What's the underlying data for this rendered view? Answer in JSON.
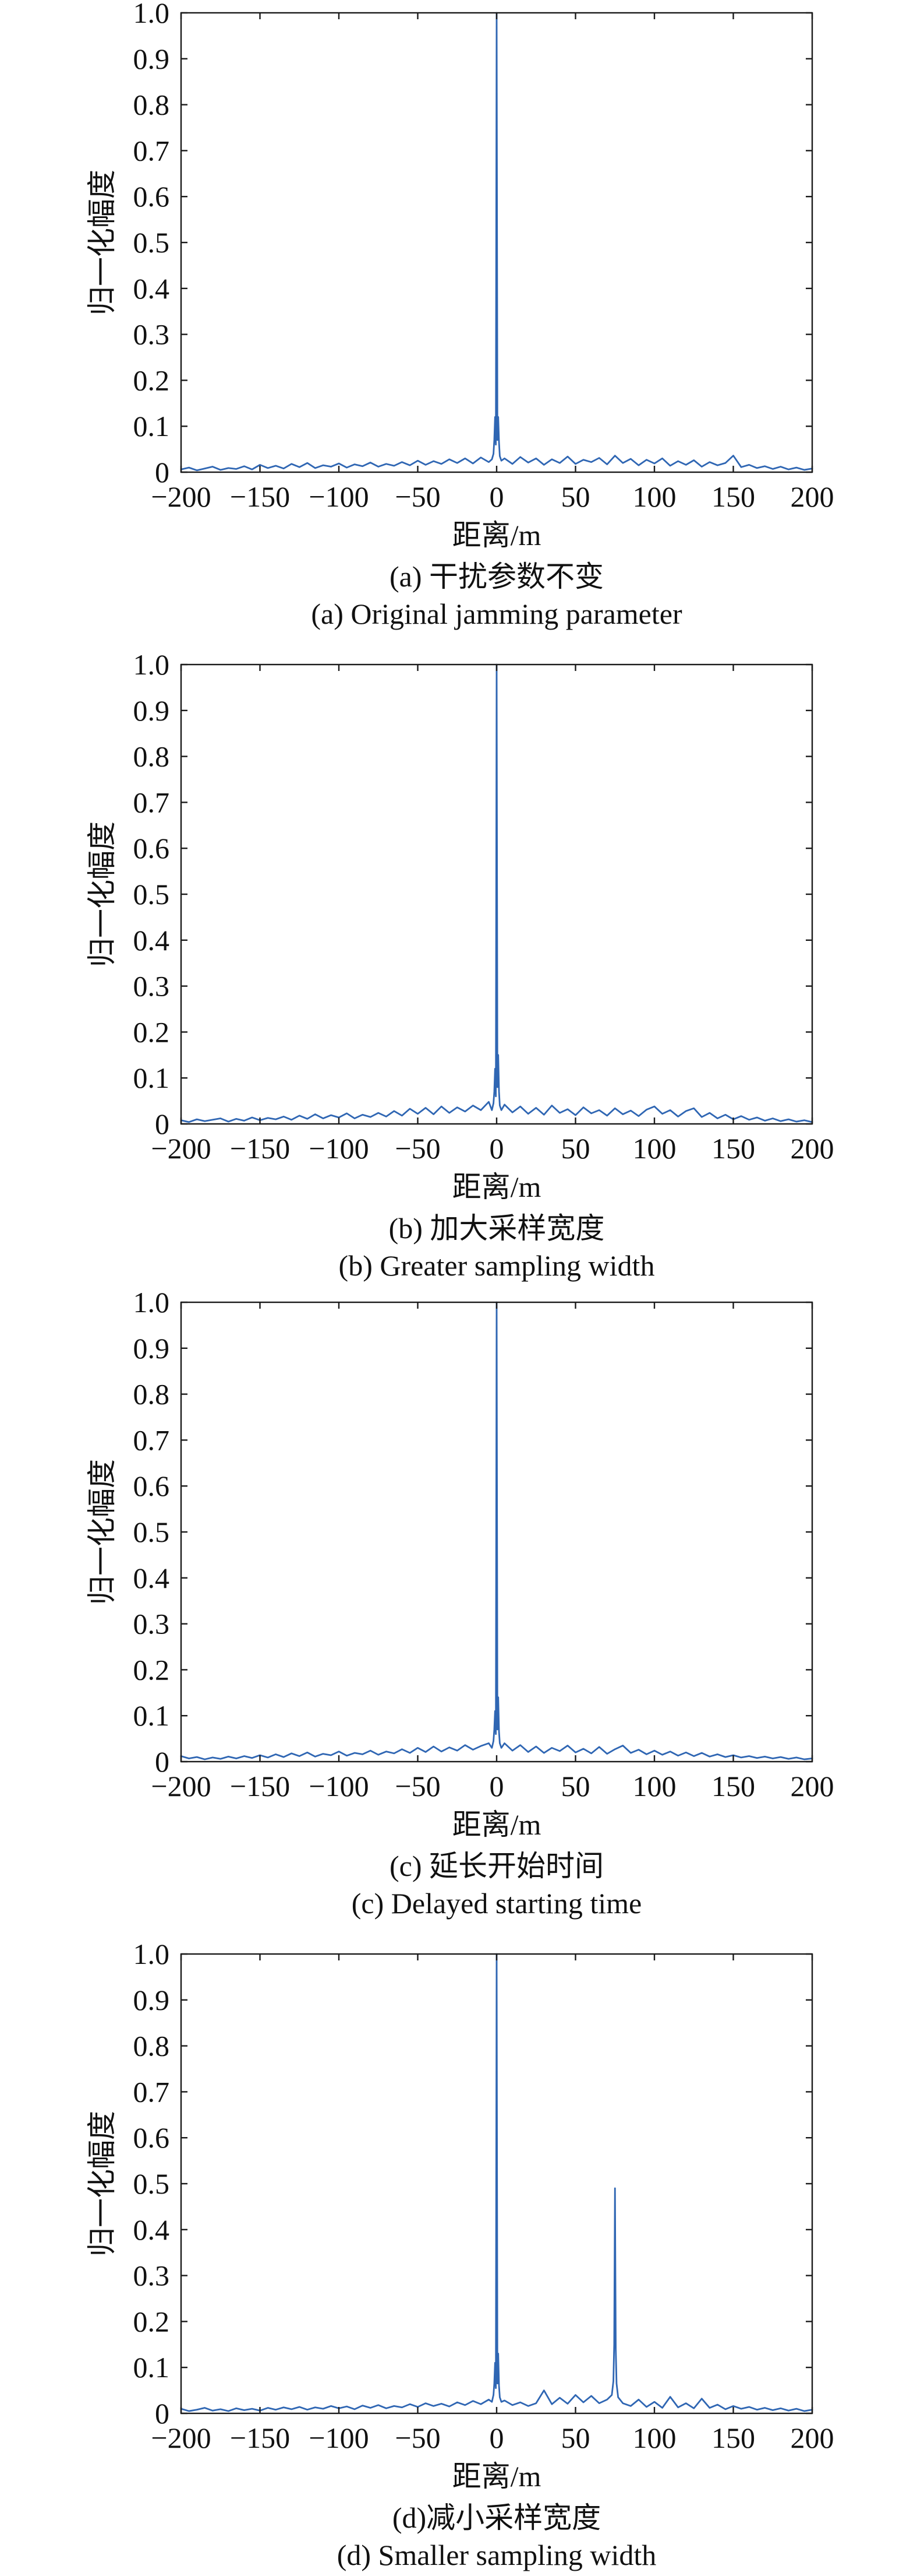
{
  "chart_data": [
    {
      "type": "line",
      "xlabel": "距离/m",
      "ylabel": "归一化幅度",
      "xlim": [
        -200,
        200
      ],
      "ylim": [
        0,
        1
      ],
      "grid": false,
      "line_color": "#2f66b3",
      "xticks": [
        -200,
        -150,
        -100,
        -50,
        0,
        50,
        100,
        150,
        200
      ],
      "xtick_labels": [
        "−200",
        "−150",
        "−100",
        "−50",
        "0",
        "50",
        "100",
        "150",
        "200"
      ],
      "yticks": [
        0,
        0.1,
        0.2,
        0.3,
        0.4,
        0.5,
        0.6,
        0.7,
        0.8,
        0.9,
        1.0
      ],
      "ytick_labels": [
        "0",
        "0.1",
        "0.2",
        "0.3",
        "0.4",
        "0.5",
        "0.6",
        "0.7",
        "0.8",
        "0.9",
        "1.0"
      ],
      "caption_zh": "(a) 干扰参数不变",
      "caption_en": "(a) Original jamming parameter",
      "x": [
        -200,
        -195,
        -190,
        -185,
        -180,
        -175,
        -170,
        -165,
        -160,
        -155,
        -150,
        -145,
        -140,
        -135,
        -130,
        -125,
        -120,
        -115,
        -110,
        -105,
        -100,
        -95,
        -90,
        -85,
        -80,
        -75,
        -70,
        -65,
        -60,
        -55,
        -50,
        -45,
        -40,
        -35,
        -30,
        -25,
        -20,
        -15,
        -10,
        -5,
        -3,
        -2,
        -1.5,
        -1,
        -0.5,
        0,
        0.5,
        1,
        1.5,
        2,
        3,
        5,
        10,
        15,
        20,
        25,
        30,
        35,
        40,
        45,
        50,
        55,
        60,
        65,
        70,
        75,
        80,
        85,
        90,
        95,
        100,
        105,
        110,
        115,
        120,
        125,
        130,
        135,
        140,
        145,
        150,
        155,
        160,
        165,
        170,
        175,
        180,
        185,
        190,
        195,
        200
      ],
      "y": [
        0.006,
        0.01,
        0.004,
        0.008,
        0.012,
        0.005,
        0.009,
        0.007,
        0.013,
        0.006,
        0.016,
        0.009,
        0.014,
        0.008,
        0.018,
        0.011,
        0.02,
        0.009,
        0.015,
        0.012,
        0.019,
        0.01,
        0.017,
        0.013,
        0.021,
        0.012,
        0.018,
        0.014,
        0.022,
        0.015,
        0.025,
        0.016,
        0.024,
        0.018,
        0.028,
        0.02,
        0.03,
        0.019,
        0.032,
        0.022,
        0.028,
        0.04,
        0.07,
        0.12,
        0.06,
        1.0,
        0.07,
        0.12,
        0.065,
        0.035,
        0.025,
        0.03,
        0.018,
        0.033,
        0.021,
        0.03,
        0.016,
        0.028,
        0.02,
        0.034,
        0.018,
        0.027,
        0.022,
        0.031,
        0.017,
        0.036,
        0.02,
        0.029,
        0.015,
        0.027,
        0.019,
        0.03,
        0.014,
        0.024,
        0.016,
        0.026,
        0.012,
        0.022,
        0.015,
        0.02,
        0.036,
        0.011,
        0.016,
        0.009,
        0.013,
        0.007,
        0.012,
        0.006,
        0.01,
        0.005,
        0.008
      ]
    },
    {
      "type": "line",
      "xlabel": "距离/m",
      "ylabel": "归一化幅度",
      "xlim": [
        -200,
        200
      ],
      "ylim": [
        0,
        1
      ],
      "grid": false,
      "line_color": "#2f66b3",
      "xticks": [
        -200,
        -150,
        -100,
        -50,
        0,
        50,
        100,
        150,
        200
      ],
      "xtick_labels": [
        "−200",
        "−150",
        "−100",
        "−50",
        "0",
        "50",
        "100",
        "150",
        "200"
      ],
      "yticks": [
        0,
        0.1,
        0.2,
        0.3,
        0.4,
        0.5,
        0.6,
        0.7,
        0.8,
        0.9,
        1.0
      ],
      "ytick_labels": [
        "0",
        "0.1",
        "0.2",
        "0.3",
        "0.4",
        "0.5",
        "0.6",
        "0.7",
        "0.8",
        "0.9",
        "1.0"
      ],
      "caption_zh": "(b) 加大采样宽度",
      "caption_en": "(b) Greater sampling width",
      "x": [
        -200,
        -195,
        -190,
        -185,
        -180,
        -175,
        -170,
        -165,
        -160,
        -155,
        -150,
        -145,
        -140,
        -135,
        -130,
        -125,
        -120,
        -115,
        -110,
        -105,
        -100,
        -95,
        -90,
        -85,
        -80,
        -75,
        -70,
        -65,
        -60,
        -55,
        -50,
        -45,
        -40,
        -35,
        -30,
        -25,
        -20,
        -15,
        -10,
        -5,
        -3,
        -2,
        -1.5,
        -1,
        -0.5,
        0,
        0.5,
        1,
        1.5,
        2,
        3,
        5,
        10,
        15,
        20,
        25,
        30,
        35,
        40,
        45,
        50,
        55,
        60,
        65,
        70,
        75,
        80,
        85,
        90,
        95,
        100,
        105,
        110,
        115,
        120,
        125,
        130,
        135,
        140,
        145,
        150,
        155,
        160,
        165,
        170,
        175,
        180,
        185,
        190,
        195,
        200
      ],
      "y": [
        0.008,
        0.004,
        0.01,
        0.006,
        0.009,
        0.012,
        0.005,
        0.011,
        0.007,
        0.014,
        0.008,
        0.013,
        0.01,
        0.016,
        0.009,
        0.018,
        0.011,
        0.021,
        0.012,
        0.019,
        0.014,
        0.023,
        0.012,
        0.02,
        0.015,
        0.024,
        0.016,
        0.028,
        0.018,
        0.033,
        0.022,
        0.035,
        0.021,
        0.038,
        0.024,
        0.036,
        0.027,
        0.04,
        0.03,
        0.048,
        0.03,
        0.045,
        0.07,
        0.12,
        0.06,
        1.0,
        0.08,
        0.15,
        0.07,
        0.04,
        0.03,
        0.042,
        0.025,
        0.038,
        0.022,
        0.035,
        0.02,
        0.04,
        0.024,
        0.032,
        0.019,
        0.036,
        0.023,
        0.03,
        0.018,
        0.034,
        0.021,
        0.029,
        0.017,
        0.031,
        0.038,
        0.022,
        0.03,
        0.016,
        0.028,
        0.034,
        0.015,
        0.024,
        0.012,
        0.02,
        0.01,
        0.017,
        0.009,
        0.014,
        0.007,
        0.012,
        0.006,
        0.01,
        0.005,
        0.008,
        0.004
      ]
    },
    {
      "type": "line",
      "xlabel": "距离/m",
      "ylabel": "归一化幅度",
      "xlim": [
        -200,
        200
      ],
      "ylim": [
        0,
        1
      ],
      "grid": false,
      "line_color": "#2f66b3",
      "xticks": [
        -200,
        -150,
        -100,
        -50,
        0,
        50,
        100,
        150,
        200
      ],
      "xtick_labels": [
        "−200",
        "−150",
        "−100",
        "−50",
        "0",
        "50",
        "100",
        "150",
        "200"
      ],
      "yticks": [
        0,
        0.1,
        0.2,
        0.3,
        0.4,
        0.5,
        0.6,
        0.7,
        0.8,
        0.9,
        1.0
      ],
      "ytick_labels": [
        "0",
        "0.1",
        "0.2",
        "0.3",
        "0.4",
        "0.5",
        "0.6",
        "0.7",
        "0.8",
        "0.9",
        "1.0"
      ],
      "caption_zh": "(c) 延长开始时间",
      "caption_en": "(c) Delayed starting time",
      "x": [
        -200,
        -195,
        -190,
        -185,
        -180,
        -175,
        -170,
        -165,
        -160,
        -155,
        -150,
        -145,
        -140,
        -135,
        -130,
        -125,
        -120,
        -115,
        -110,
        -105,
        -100,
        -95,
        -90,
        -85,
        -80,
        -75,
        -70,
        -65,
        -60,
        -55,
        -50,
        -45,
        -40,
        -35,
        -30,
        -25,
        -20,
        -15,
        -10,
        -5,
        -3,
        -2,
        -1.5,
        -1,
        -0.5,
        0,
        0.5,
        1,
        1.5,
        2,
        3,
        5,
        10,
        15,
        20,
        25,
        30,
        35,
        40,
        45,
        50,
        55,
        60,
        65,
        70,
        75,
        80,
        85,
        90,
        95,
        100,
        105,
        110,
        115,
        120,
        125,
        130,
        135,
        140,
        145,
        150,
        155,
        160,
        165,
        170,
        175,
        180,
        185,
        190,
        195,
        200
      ],
      "y": [
        0.012,
        0.007,
        0.01,
        0.005,
        0.009,
        0.006,
        0.011,
        0.007,
        0.012,
        0.008,
        0.014,
        0.009,
        0.016,
        0.01,
        0.018,
        0.012,
        0.02,
        0.011,
        0.017,
        0.014,
        0.022,
        0.013,
        0.019,
        0.016,
        0.024,
        0.015,
        0.022,
        0.018,
        0.027,
        0.019,
        0.03,
        0.021,
        0.033,
        0.022,
        0.031,
        0.024,
        0.036,
        0.026,
        0.034,
        0.04,
        0.03,
        0.045,
        0.07,
        0.11,
        0.06,
        1.0,
        0.07,
        0.14,
        0.065,
        0.04,
        0.03,
        0.04,
        0.024,
        0.036,
        0.021,
        0.033,
        0.019,
        0.03,
        0.023,
        0.035,
        0.02,
        0.028,
        0.018,
        0.032,
        0.017,
        0.027,
        0.035,
        0.019,
        0.026,
        0.016,
        0.024,
        0.015,
        0.022,
        0.013,
        0.02,
        0.012,
        0.019,
        0.011,
        0.016,
        0.01,
        0.014,
        0.009,
        0.012,
        0.008,
        0.011,
        0.007,
        0.01,
        0.006,
        0.009,
        0.005,
        0.007
      ]
    },
    {
      "type": "line",
      "xlabel": "距离/m",
      "ylabel": "归一化幅度",
      "xlim": [
        -200,
        200
      ],
      "ylim": [
        0,
        1
      ],
      "grid": false,
      "line_color": "#2f66b3",
      "xticks": [
        -200,
        -150,
        -100,
        -50,
        0,
        50,
        100,
        150,
        200
      ],
      "xtick_labels": [
        "−200",
        "−150",
        "−100",
        "−50",
        "0",
        "50",
        "100",
        "150",
        "200"
      ],
      "yticks": [
        0,
        0.1,
        0.2,
        0.3,
        0.4,
        0.5,
        0.6,
        0.7,
        0.8,
        0.9,
        1.0
      ],
      "ytick_labels": [
        "0",
        "0.1",
        "0.2",
        "0.3",
        "0.4",
        "0.5",
        "0.6",
        "0.7",
        "0.8",
        "0.9",
        "1.0"
      ],
      "caption_zh": "(d)减小采样宽度",
      "caption_en": "(d) Smaller sampling width",
      "x": [
        -200,
        -195,
        -190,
        -185,
        -180,
        -175,
        -170,
        -165,
        -160,
        -155,
        -150,
        -145,
        -140,
        -135,
        -130,
        -125,
        -120,
        -115,
        -110,
        -105,
        -100,
        -95,
        -90,
        -85,
        -80,
        -75,
        -70,
        -65,
        -60,
        -55,
        -50,
        -45,
        -40,
        -35,
        -30,
        -25,
        -20,
        -15,
        -10,
        -5,
        -3,
        -2,
        -1.5,
        -1,
        -0.5,
        0,
        0.5,
        1,
        1.5,
        2,
        3,
        5,
        10,
        15,
        20,
        25,
        30,
        35,
        40,
        45,
        50,
        55,
        60,
        65,
        70,
        73,
        74,
        74.5,
        75,
        75.5,
        76,
        77,
        80,
        85,
        90,
        95,
        100,
        105,
        110,
        115,
        120,
        125,
        130,
        135,
        140,
        145,
        150,
        155,
        160,
        165,
        170,
        175,
        180,
        185,
        190,
        195,
        200
      ],
      "y": [
        0.01,
        0.005,
        0.008,
        0.012,
        0.006,
        0.009,
        0.005,
        0.011,
        0.007,
        0.01,
        0.006,
        0.012,
        0.008,
        0.013,
        0.009,
        0.014,
        0.008,
        0.013,
        0.01,
        0.016,
        0.011,
        0.015,
        0.009,
        0.017,
        0.012,
        0.018,
        0.011,
        0.016,
        0.013,
        0.02,
        0.014,
        0.022,
        0.016,
        0.021,
        0.015,
        0.024,
        0.018,
        0.027,
        0.02,
        0.03,
        0.025,
        0.04,
        0.065,
        0.11,
        0.055,
        1.0,
        0.065,
        0.13,
        0.06,
        0.035,
        0.025,
        0.028,
        0.018,
        0.024,
        0.016,
        0.022,
        0.05,
        0.02,
        0.034,
        0.021,
        0.04,
        0.024,
        0.038,
        0.022,
        0.03,
        0.04,
        0.07,
        0.15,
        0.49,
        0.14,
        0.065,
        0.035,
        0.022,
        0.016,
        0.03,
        0.014,
        0.025,
        0.012,
        0.036,
        0.013,
        0.022,
        0.011,
        0.032,
        0.012,
        0.019,
        0.009,
        0.016,
        0.01,
        0.014,
        0.008,
        0.012,
        0.007,
        0.011,
        0.006,
        0.01,
        0.005,
        0.008
      ]
    }
  ]
}
